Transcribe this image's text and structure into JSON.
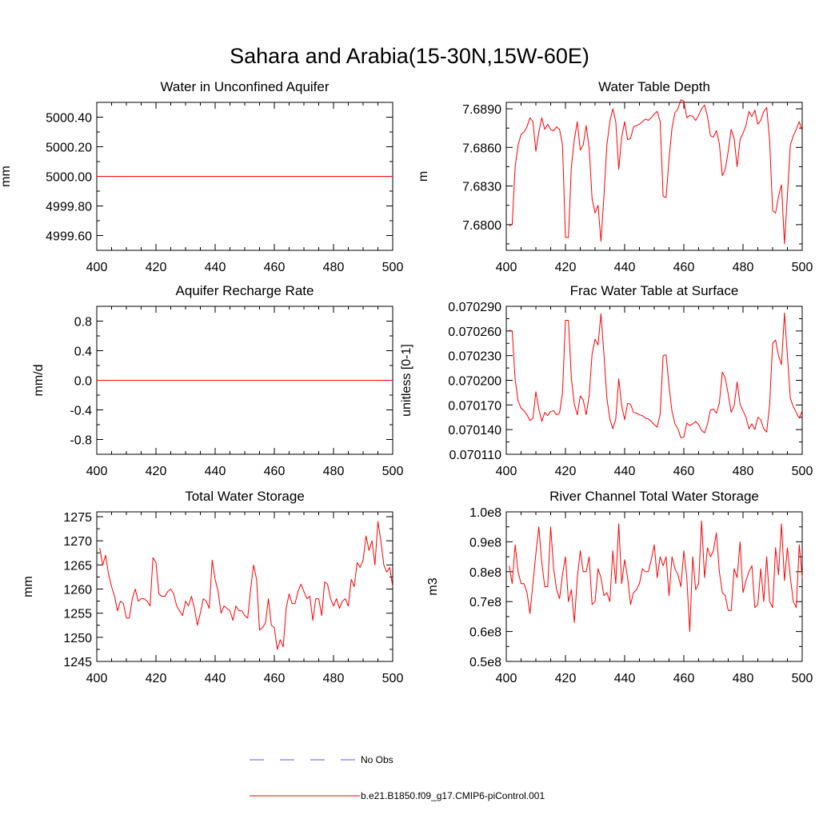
{
  "figure": {
    "title": "Sahara and Arabia(15-30N,15W-60E)"
  },
  "chart_data": [
    {
      "type": "line",
      "title": "Water in Unconfined Aquifer",
      "xlabel": "",
      "ylabel": "mm",
      "xlim": [
        400,
        500
      ],
      "ylim": [
        4999.5,
        5000.5
      ],
      "xticks": [
        400,
        420,
        440,
        460,
        480,
        500
      ],
      "xtick_labels": [
        "400",
        "420",
        "440",
        "460",
        "480",
        "500"
      ],
      "yticks": [
        4999.6,
        4999.8,
        5000.0,
        5000.2,
        5000.4
      ],
      "ytick_labels": [
        "4999.60",
        "4999.80",
        "5000.00",
        "5000.20",
        "5000.40"
      ],
      "series": [
        {
          "name": "b.e21.B1850.f09_g17.CMIP6-piControl.001",
          "color": "#ff0000",
          "x_start": 400,
          "x_step": 100,
          "values": [
            5000.0,
            5000.0
          ]
        }
      ]
    },
    {
      "type": "line",
      "title": "Water Table Depth",
      "xlabel": "",
      "ylabel": "m",
      "xlim": [
        400,
        500
      ],
      "ylim": [
        7.678,
        7.6895
      ],
      "xticks": [
        400,
        420,
        440,
        460,
        480,
        500
      ],
      "xtick_labels": [
        "400",
        "420",
        "440",
        "460",
        "480",
        "500"
      ],
      "yticks": [
        7.68,
        7.683,
        7.686,
        7.689
      ],
      "ytick_labels": [
        "7.6800",
        "7.6830",
        "7.6860",
        "7.6890"
      ],
      "series": [
        {
          "name": "b.e21.B1850.f09_g17.CMIP6-piControl.001",
          "color": "#ff0000",
          "x_start": 401,
          "x_step": 1,
          "values": [
            7.6799,
            7.68,
            7.6845,
            7.6862,
            7.687,
            7.6872,
            7.6876,
            7.6883,
            7.688,
            7.6857,
            7.6872,
            7.6883,
            7.6874,
            7.6878,
            7.6874,
            7.6873,
            7.6876,
            7.6874,
            7.6862,
            7.679,
            7.679,
            7.6845,
            7.6866,
            7.688,
            7.6858,
            7.6862,
            7.6877,
            7.686,
            7.682,
            7.6809,
            7.6815,
            7.6787,
            7.6822,
            7.6862,
            7.688,
            7.689,
            7.688,
            7.6843,
            7.6868,
            7.688,
            7.6866,
            7.6867,
            7.6876,
            7.6877,
            7.6878,
            7.688,
            7.6882,
            7.6881,
            7.6883,
            7.6886,
            7.6888,
            7.688,
            7.6822,
            7.6821,
            7.6851,
            7.6875,
            7.6887,
            7.689,
            7.6897,
            7.6896,
            7.6883,
            7.6885,
            7.6884,
            7.6881,
            7.6885,
            7.689,
            7.6893,
            7.6884,
            7.6869,
            7.6868,
            7.6873,
            7.6863,
            7.6838,
            7.6843,
            7.6857,
            7.6874,
            7.6867,
            7.6845,
            7.6866,
            7.6871,
            7.6877,
            7.6888,
            7.6884,
            7.6889,
            7.6878,
            7.6881,
            7.6888,
            7.6891,
            7.6865,
            7.6811,
            7.6809,
            7.6822,
            7.6831,
            7.6785,
            7.6823,
            7.6862,
            7.6869,
            7.6874,
            7.688,
            7.6873
          ]
        }
      ]
    },
    {
      "type": "line",
      "title": "Aquifer Recharge Rate",
      "xlabel": "",
      "ylabel": "mm/d",
      "xlim": [
        400,
        500
      ],
      "ylim": [
        -1.0,
        1.0
      ],
      "xticks": [
        400,
        420,
        440,
        460,
        480,
        500
      ],
      "xtick_labels": [
        "400",
        "420",
        "440",
        "460",
        "480",
        "500"
      ],
      "yticks": [
        -0.8,
        -0.4,
        0.0,
        0.4,
        0.8
      ],
      "ytick_labels": [
        "-0.8",
        "-0.4",
        "0.0",
        "0.4",
        "0.8"
      ],
      "series": [
        {
          "name": "b.e21.B1850.f09_g17.CMIP6-piControl.001",
          "color": "#ff0000",
          "x_start": 400,
          "x_step": 100,
          "values": [
            0.0,
            0.0
          ]
        }
      ]
    },
    {
      "type": "line",
      "title": "Frac Water Table at Surface",
      "xlabel": "",
      "ylabel": "unitless [0-1]",
      "xlim": [
        400,
        500
      ],
      "ylim": [
        0.07011,
        0.07029
      ],
      "xticks": [
        400,
        420,
        440,
        460,
        480,
        500
      ],
      "xtick_labels": [
        "400",
        "420",
        "440",
        "460",
        "480",
        "500"
      ],
      "yticks": [
        0.07011,
        0.07014,
        0.07017,
        0.0702,
        0.07023,
        0.07026,
        0.07029
      ],
      "ytick_labels": [
        "0.070110",
        "0.070140",
        "0.070170",
        "0.070200",
        "0.070230",
        "0.070260",
        "0.070290"
      ],
      "series": [
        {
          "name": "b.e21.B1850.f09_g17.CMIP6-piControl.001",
          "color": "#ff0000",
          "x_start": 401,
          "x_step": 1,
          "values": [
            0.070261,
            0.07026,
            0.070201,
            0.070175,
            0.070166,
            0.070163,
            0.070158,
            0.070151,
            0.070154,
            0.070186,
            0.070165,
            0.07015,
            0.070161,
            0.070157,
            0.070162,
            0.070163,
            0.070158,
            0.07016,
            0.070185,
            0.070273,
            0.070273,
            0.070202,
            0.070171,
            0.070158,
            0.070181,
            0.070176,
            0.070158,
            0.070181,
            0.070232,
            0.07025,
            0.070243,
            0.070281,
            0.070232,
            0.070178,
            0.070153,
            0.070141,
            0.070153,
            0.070202,
            0.070169,
            0.070152,
            0.070172,
            0.070171,
            0.070161,
            0.07016,
            0.070158,
            0.070157,
            0.070154,
            0.070153,
            0.07015,
            0.070146,
            0.070143,
            0.070159,
            0.07023,
            0.070231,
            0.070193,
            0.070162,
            0.070147,
            0.070141,
            0.07013,
            0.070131,
            0.070148,
            0.070145,
            0.070147,
            0.07015,
            0.070146,
            0.070139,
            0.070136,
            0.070147,
            0.070164,
            0.070165,
            0.07016,
            0.070172,
            0.07021,
            0.070203,
            0.070183,
            0.070161,
            0.070169,
            0.070198,
            0.070171,
            0.070163,
            0.070155,
            0.070141,
            0.070147,
            0.07014,
            0.070155,
            0.070152,
            0.070141,
            0.070137,
            0.070171,
            0.070245,
            0.070249,
            0.07023,
            0.070219,
            0.070282,
            0.07023,
            0.070178,
            0.070168,
            0.070161,
            0.070154,
            0.070163
          ]
        }
      ]
    },
    {
      "type": "line",
      "title": "Total Water Storage",
      "xlabel": "",
      "ylabel": "mm",
      "xlim": [
        400,
        500
      ],
      "ylim": [
        1245,
        1276
      ],
      "xticks": [
        400,
        420,
        440,
        460,
        480,
        500
      ],
      "xtick_labels": [
        "400",
        "420",
        "440",
        "460",
        "480",
        "500"
      ],
      "yticks": [
        1245,
        1250,
        1255,
        1260,
        1265,
        1270,
        1275
      ],
      "ytick_labels": [
        "1245",
        "1250",
        "1255",
        "1260",
        "1265",
        "1270",
        "1275"
      ],
      "series": [
        {
          "name": "b.e21.B1850.f09_g17.CMIP6-piControl.001",
          "color": "#ff0000",
          "x_start": 401,
          "x_step": 1,
          "values": [
            1268.5,
            1265.0,
            1267.0,
            1263.0,
            1260.5,
            1258.5,
            1255.5,
            1257.5,
            1257.0,
            1254.0,
            1254.0,
            1258.0,
            1260.0,
            1257.5,
            1258.0,
            1258.0,
            1257.5,
            1256.5,
            1266.5,
            1265.5,
            1259.0,
            1258.5,
            1258.5,
            1259.5,
            1260.0,
            1259.0,
            1256.5,
            1255.5,
            1254.5,
            1257.5,
            1256.5,
            1258.5,
            1256.0,
            1252.5,
            1255.0,
            1258.0,
            1257.5,
            1256.0,
            1266.0,
            1262.0,
            1259.5,
            1255.0,
            1256.5,
            1256.0,
            1255.5,
            1253.5,
            1256.5,
            1255.5,
            1255.5,
            1254.5,
            1254.0,
            1260.0,
            1265.0,
            1262.0,
            1251.5,
            1252.0,
            1253.0,
            1258.0,
            1252.5,
            1252.0,
            1247.5,
            1249.5,
            1248.0,
            1256.0,
            1259.0,
            1257.0,
            1257.0,
            1259.5,
            1261.0,
            1259.5,
            1258.0,
            1258.5,
            1253.5,
            1258.0,
            1258.0,
            1254.5,
            1261.5,
            1261.0,
            1258.0,
            1256.5,
            1258.0,
            1256.0,
            1257.5,
            1258.0,
            1256.5,
            1262.0,
            1260.5,
            1265.5,
            1264.5,
            1266.0,
            1271.0,
            1268.0,
            1270.0,
            1265.0,
            1274.0,
            1270.0,
            1265.0,
            1263.5,
            1264.5,
            1260.5
          ]
        }
      ]
    },
    {
      "type": "line",
      "title": "River Channel Total Water Storage",
      "xlabel": "",
      "ylabel": "m3",
      "xlim": [
        400,
        500
      ],
      "ylim": [
        50000000.0,
        100000000.0
      ],
      "xticks": [
        400,
        420,
        440,
        460,
        480,
        500
      ],
      "xtick_labels": [
        "400",
        "420",
        "440",
        "460",
        "480",
        "500"
      ],
      "yticks": [
        50000000.0,
        60000000.0,
        70000000.0,
        80000000.0,
        90000000.0,
        100000000.0
      ],
      "ytick_labels": [
        "0.5e8",
        "0.6e8",
        "0.7e8",
        "0.8e8",
        "0.9e8",
        "1.0e8"
      ],
      "series": [
        {
          "name": "b.e21.B1850.f09_g17.CMIP6-piControl.001",
          "color": "#ff0000",
          "x_start": 401,
          "x_step": 1,
          "values": [
            82000000,
            76000000,
            89000000,
            80000000,
            76000000,
            76000000,
            73000000,
            66000000,
            76000000,
            86000000,
            95000000,
            83000000,
            75000000,
            75000000,
            95000000,
            81000000,
            74000000,
            71000000,
            79000000,
            85000000,
            70000000,
            74000000,
            63000000,
            78000000,
            87000000,
            80000000,
            80000000,
            85000000,
            69000000,
            70000000,
            81000000,
            78000000,
            72000000,
            73000000,
            70000000,
            87000000,
            76000000,
            96000000,
            76000000,
            84000000,
            78000000,
            69000000,
            73000000,
            74000000,
            76000000,
            81000000,
            80000000,
            80000000,
            84000000,
            89000000,
            78000000,
            85000000,
            82000000,
            85000000,
            72000000,
            85000000,
            81000000,
            79000000,
            75000000,
            87000000,
            78000000,
            60000000,
            85000000,
            74000000,
            76000000,
            97000000,
            78000000,
            88000000,
            85000000,
            87000000,
            93000000,
            80000000,
            73000000,
            72000000,
            67000000,
            67000000,
            81000000,
            78000000,
            90000000,
            73000000,
            77000000,
            80000000,
            82000000,
            68000000,
            69000000,
            81000000,
            70000000,
            85000000,
            70000000,
            68000000,
            88000000,
            79000000,
            96000000,
            77000000,
            88000000,
            78000000,
            70000000,
            68000000,
            89000000,
            78000000
          ]
        }
      ]
    }
  ],
  "legend": {
    "items": [
      {
        "label": "No Obs",
        "color": "#5555ff",
        "style": "dashed"
      },
      {
        "label": "b.e21.B1850.f09_g17.CMIP6-piControl.001",
        "color": "#ff0000",
        "style": "solid"
      }
    ]
  }
}
